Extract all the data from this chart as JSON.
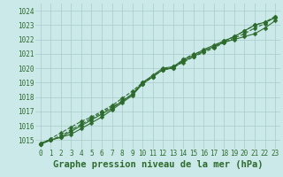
{
  "xlabel": "Graphe pression niveau de la mer (hPa)",
  "background_color": "#cce9e9",
  "grid_color": "#aacccc",
  "line_color": "#2d6b2d",
  "x_values": [
    0,
    1,
    2,
    3,
    4,
    5,
    6,
    7,
    8,
    9,
    10,
    11,
    12,
    13,
    14,
    15,
    16,
    17,
    18,
    19,
    20,
    21,
    22,
    23
  ],
  "series1": [
    1014.8,
    1015.0,
    1015.2,
    1015.4,
    1015.8,
    1016.2,
    1016.6,
    1017.1,
    1017.6,
    1018.1,
    1018.9,
    1019.4,
    1019.9,
    1020.0,
    1020.5,
    1020.8,
    1021.2,
    1021.5,
    1021.8,
    1022.0,
    1022.2,
    1022.4,
    1022.8,
    1023.3
  ],
  "series2": [
    1014.7,
    1015.0,
    1015.3,
    1015.7,
    1016.1,
    1016.5,
    1016.9,
    1017.3,
    1017.7,
    1018.2,
    1018.9,
    1019.4,
    1019.9,
    1020.1,
    1020.4,
    1020.8,
    1021.1,
    1021.4,
    1021.8,
    1022.1,
    1022.4,
    1022.8,
    1023.1,
    1023.6
  ],
  "series3": [
    1014.7,
    1015.1,
    1015.5,
    1015.9,
    1016.3,
    1016.6,
    1017.0,
    1017.4,
    1017.9,
    1018.4,
    1019.0,
    1019.4,
    1019.9,
    1020.0,
    1020.6,
    1021.0,
    1021.2,
    1021.5,
    1021.9,
    1022.2,
    1022.6,
    1023.0,
    1023.2,
    1023.6
  ],
  "series4": [
    1014.7,
    1015.0,
    1015.2,
    1015.6,
    1016.0,
    1016.4,
    1016.8,
    1017.2,
    1017.7,
    1018.2,
    1019.0,
    1019.5,
    1020.0,
    1020.1,
    1020.6,
    1020.9,
    1021.3,
    1021.6,
    1021.9,
    1022.2,
    1022.6,
    1023.0,
    1023.2,
    1023.5
  ],
  "ylim_min": 1014.4,
  "ylim_max": 1024.5,
  "yticks": [
    1015,
    1016,
    1017,
    1018,
    1019,
    1020,
    1021,
    1022,
    1023,
    1024
  ],
  "xticks": [
    0,
    1,
    2,
    3,
    4,
    5,
    6,
    7,
    8,
    9,
    10,
    11,
    12,
    13,
    14,
    15,
    16,
    17,
    18,
    19,
    20,
    21,
    22,
    23
  ],
  "markersize": 2.5,
  "linewidth": 0.8,
  "tick_fontsize": 5.5,
  "xlabel_fontsize": 7.5
}
